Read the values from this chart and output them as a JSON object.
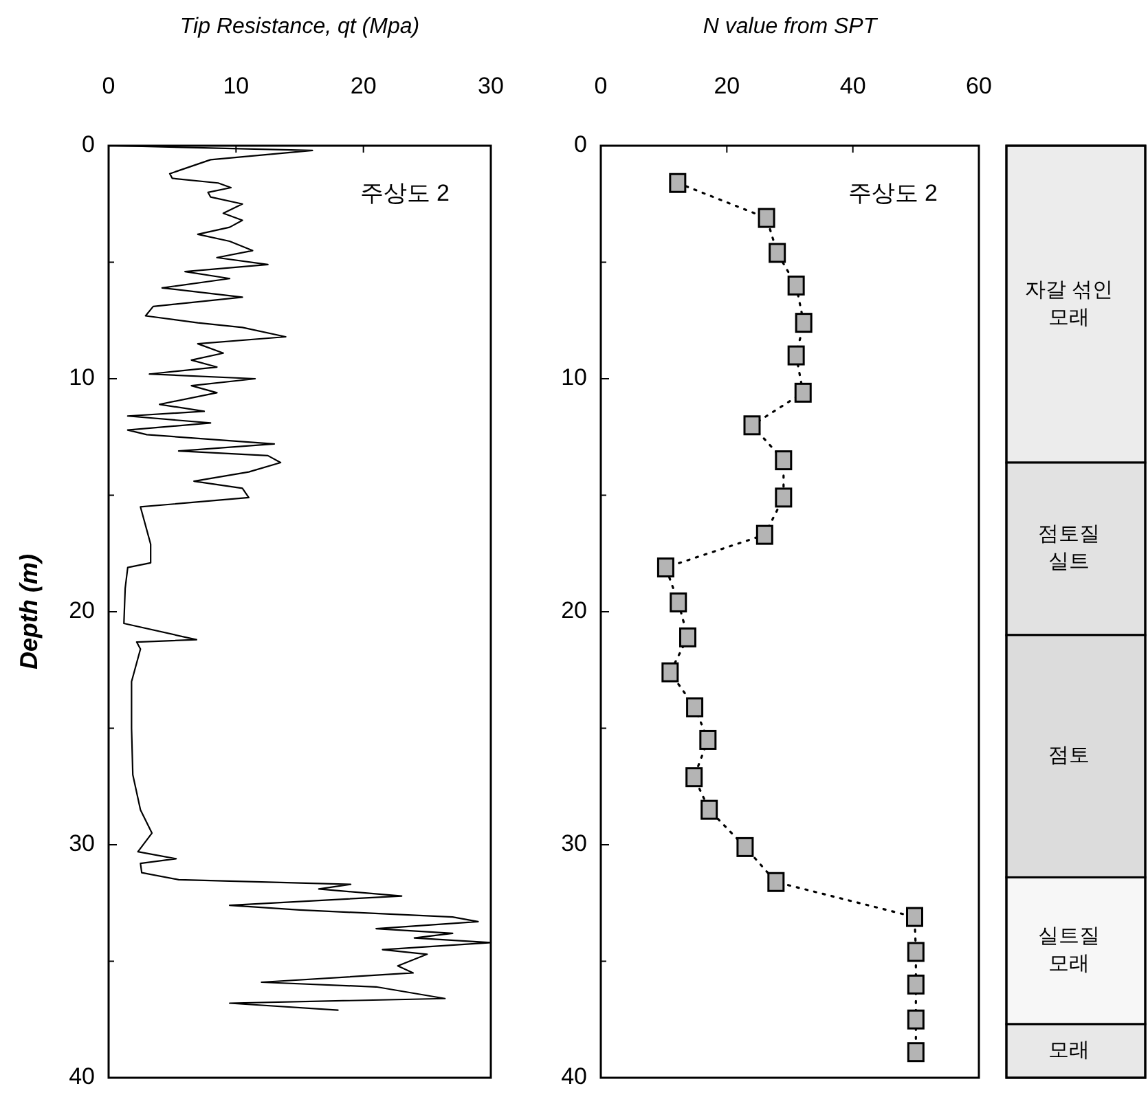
{
  "chart_data": [
    {
      "type": "line",
      "xlabel": "Tip Resistance, qt (Mpa)",
      "ylabel": "Depth (m)",
      "xlim": [
        0,
        30
      ],
      "xticks": [
        0,
        10,
        20,
        30
      ],
      "ylim": [
        40,
        0
      ],
      "yticks": [
        0,
        {
          "value": 5,
          "label": null
        },
        10,
        {
          "value": 15,
          "label": null
        },
        20,
        {
          "value": 25,
          "label": null
        },
        30,
        {
          "value": 35,
          "label": null
        },
        40
      ],
      "marker": "none",
      "line_style": "solid",
      "annotations": [
        "주상도 2"
      ],
      "series": [
        {
          "color": "#000000",
          "x": [
            0.5,
            16,
            12,
            8,
            4.8,
            5,
            8.6,
            9.6,
            7.8,
            8,
            10.5,
            9,
            10.5,
            9.5,
            7,
            9.5,
            11.3,
            8.5,
            12.5,
            6,
            9.5,
            4.2,
            10.5,
            3.5,
            2.9,
            7,
            10.5,
            13.9,
            7,
            9,
            6.5,
            8.5,
            3.2,
            11.5,
            6.5,
            8.5,
            4,
            7.5,
            1.5,
            8,
            1.5,
            3,
            13,
            5.5,
            12.5,
            13.5,
            11,
            6.7,
            10.5,
            11,
            2.5,
            3,
            3.3,
            3.3,
            1.5,
            1.3,
            1.2,
            6.9,
            2.2,
            2.5,
            1.8,
            1.8,
            1.9,
            2.5,
            3.4,
            2.3,
            5.3,
            2.5,
            2.6,
            5.5,
            19,
            16.5,
            23,
            9.5,
            15,
            27,
            29,
            21,
            27,
            24,
            30,
            21.5,
            25,
            22.7,
            23.9,
            12,
            21,
            26.4,
            9.5,
            18
          ],
          "values": [
            0,
            0.2,
            0.4,
            0.6,
            1.2,
            1.4,
            1.6,
            1.8,
            2,
            2.2,
            2.5,
            2.9,
            3.2,
            3.5,
            3.8,
            4.1,
            4.5,
            4.8,
            5.1,
            5.4,
            5.7,
            6.1,
            6.5,
            6.9,
            7.3,
            7.6,
            7.8,
            8.2,
            8.5,
            8.9,
            9.2,
            9.5,
            9.8,
            10,
            10.3,
            10.6,
            11.1,
            11.4,
            11.6,
            11.9,
            12.2,
            12.4,
            12.8,
            13.1,
            13.3,
            13.6,
            14,
            14.4,
            14.7,
            15.1,
            15.5,
            16.5,
            17.1,
            17.9,
            18.1,
            19,
            20.5,
            21.2,
            21.3,
            21.6,
            23,
            25,
            27,
            28.5,
            29.5,
            30.3,
            30.6,
            30.8,
            31.2,
            31.5,
            31.7,
            31.9,
            32.2,
            32.6,
            32.8,
            33.1,
            33.3,
            33.6,
            33.8,
            34,
            34.2,
            34.5,
            34.7,
            35.2,
            35.5,
            35.9,
            36.1,
            36.6,
            36.8,
            37.1
          ]
        }
      ]
    },
    {
      "type": "line",
      "xlabel": "N value from SPT",
      "xlim": [
        0,
        60
      ],
      "xticks": [
        0,
        20,
        40,
        60
      ],
      "ylim": [
        40,
        0
      ],
      "yticks": [
        0,
        {
          "value": 5,
          "label": null
        },
        10,
        {
          "value": 15,
          "label": null
        },
        20,
        {
          "value": 25,
          "label": null
        },
        30,
        {
          "value": 35,
          "label": null
        },
        40
      ],
      "marker": "square",
      "line_style": "dotted",
      "annotations": [
        "주상도 2"
      ],
      "series": [
        {
          "color": "#b4b4b4",
          "x": [
            12.2,
            26.3,
            28,
            31,
            32.2,
            31,
            32.1,
            24,
            29,
            29,
            26,
            10.3,
            12.3,
            13.8,
            11,
            14.9,
            17,
            14.8,
            17.2,
            22.9,
            27.8,
            49.8,
            50,
            50,
            50,
            50
          ],
          "values": [
            1.6,
            3.1,
            4.6,
            6,
            7.6,
            9,
            10.6,
            12,
            13.5,
            15.1,
            16.7,
            18.1,
            19.6,
            21.1,
            22.6,
            24.1,
            25.5,
            27.1,
            28.5,
            30.1,
            31.6,
            33.1,
            34.6,
            36,
            37.5,
            38.9
          ]
        }
      ]
    },
    {
      "type": "bar",
      "stacked": true,
      "categories": [
        null
      ],
      "ylim": [
        40,
        0
      ],
      "series": [
        {
          "name": "자갈 섞인 모래",
          "color": "#ececec",
          "values": [
            13.6
          ]
        },
        {
          "name": "점토질 실트",
          "color": "#e2e2e2",
          "values": [
            7.4
          ]
        },
        {
          "name": "점토",
          "color": "#dcdcdc",
          "values": [
            10.4
          ]
        },
        {
          "name": "실트질 모래",
          "color": "#f7f7f7",
          "values": [
            6.3
          ]
        },
        {
          "name": "모래",
          "color": "#e8e8e8",
          "values": [
            2.3
          ]
        }
      ]
    }
  ]
}
